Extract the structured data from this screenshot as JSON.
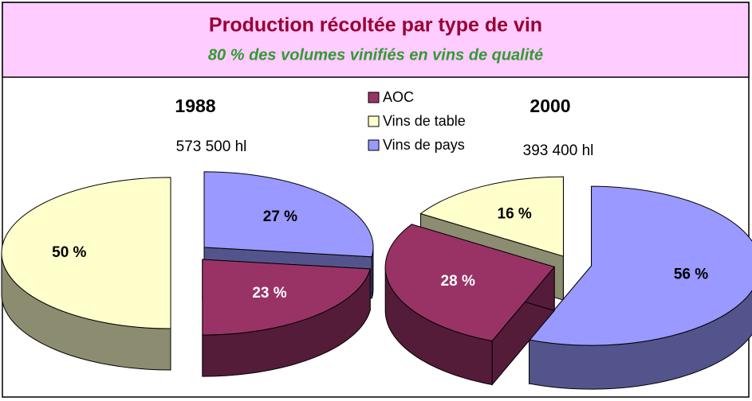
{
  "header": {
    "title": "Production récoltée par type de vin",
    "subtitle": "80 % des volumes vinifiés en vins de qualité"
  },
  "chart_data": [
    {
      "type": "pie",
      "title": "1988",
      "subtitle": "573 500 hl",
      "categories": [
        "AOC",
        "Vins de table",
        "Vins de pays"
      ],
      "values": [
        23,
        50,
        27
      ],
      "value_labels": [
        "23 %",
        "50 %",
        "27 %"
      ],
      "colors": [
        "#993366",
        "#ffffcc",
        "#9999ff"
      ]
    },
    {
      "type": "pie",
      "title": "2000",
      "subtitle": "393 400 hl",
      "categories": [
        "AOC",
        "Vins de table",
        "Vins de pays"
      ],
      "values": [
        28,
        16,
        56
      ],
      "value_labels": [
        "28 %",
        "16 %",
        "56 %"
      ],
      "colors": [
        "#993366",
        "#ffffcc",
        "#9999ff"
      ]
    }
  ]
}
